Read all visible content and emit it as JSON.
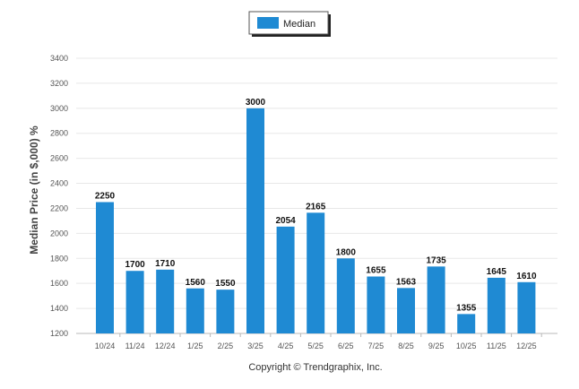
{
  "chart_data": {
    "type": "bar",
    "categories": [
      "10/24",
      "11/24",
      "12/24",
      "1/25",
      "2/25",
      "3/25",
      "4/25",
      "5/25",
      "6/25",
      "7/25",
      "8/25",
      "9/25",
      "10/25",
      "11/25",
      "12/25"
    ],
    "series": [
      {
        "name": "Median",
        "color": "#1f8ad3",
        "values": [
          2250,
          1700,
          1710,
          1560,
          1550,
          3000,
          2054,
          2165,
          1800,
          1655,
          1563,
          1735,
          1355,
          1645,
          1610
        ]
      }
    ],
    "ylabel": "Median Price (in $,000) %",
    "ylim": [
      1200,
      3400
    ],
    "yticks": [
      1200,
      1400,
      1600,
      1800,
      2000,
      2200,
      2400,
      2600,
      2800,
      3000,
      3200,
      3400
    ],
    "grid": true,
    "legend": "top-center",
    "data_labels": true
  },
  "credit": "Copyright © Trendgraphix, Inc."
}
